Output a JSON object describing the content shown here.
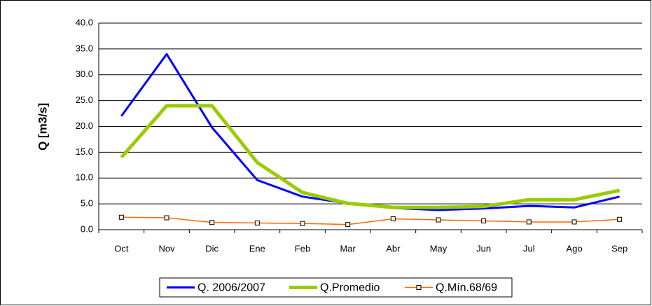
{
  "chart_data": {
    "type": "line",
    "y_label": "Q [m3/s]",
    "categories": [
      "Oct",
      "Nov",
      "Dic",
      "Ene",
      "Feb",
      "Mar",
      "Abr",
      "May",
      "Jun",
      "Jul",
      "Ago",
      "Sep"
    ],
    "series": [
      {
        "name": "Q. 2006/2007",
        "color": "#0000ff",
        "values": [
          22,
          34,
          19.8,
          9.6,
          6.4,
          5.1,
          4.2,
          3.8,
          4.1,
          4.6,
          4.3,
          6.4
        ]
      },
      {
        "name": "Q.Promedio",
        "color": "#99cc00",
        "values": [
          14,
          24,
          24,
          13,
          7.2,
          5.1,
          4.3,
          4.3,
          4.5,
          5.8,
          5.8,
          7.6
        ]
      },
      {
        "name": "Q.Mín.68/69",
        "color": "#ff6600",
        "values": [
          2.4,
          2.3,
          1.4,
          1.3,
          1.2,
          1.0,
          2.1,
          1.9,
          1.7,
          1.5,
          1.5,
          2.0
        ]
      }
    ],
    "ylim": [
      0,
      40
    ],
    "yticks": [
      {
        "value": 0,
        "label": "0.0"
      },
      {
        "value": 5,
        "label": "5.0"
      },
      {
        "value": 10,
        "label": "10.0"
      },
      {
        "value": 15,
        "label": "15.0"
      },
      {
        "value": 20,
        "label": "20.0"
      },
      {
        "value": 25,
        "label": "25.0"
      },
      {
        "value": 30,
        "label": "30.0"
      },
      {
        "value": 35,
        "label": "35.0"
      },
      {
        "value": 40,
        "label": "40.0"
      }
    ],
    "grid": true,
    "legend": "bottom"
  }
}
